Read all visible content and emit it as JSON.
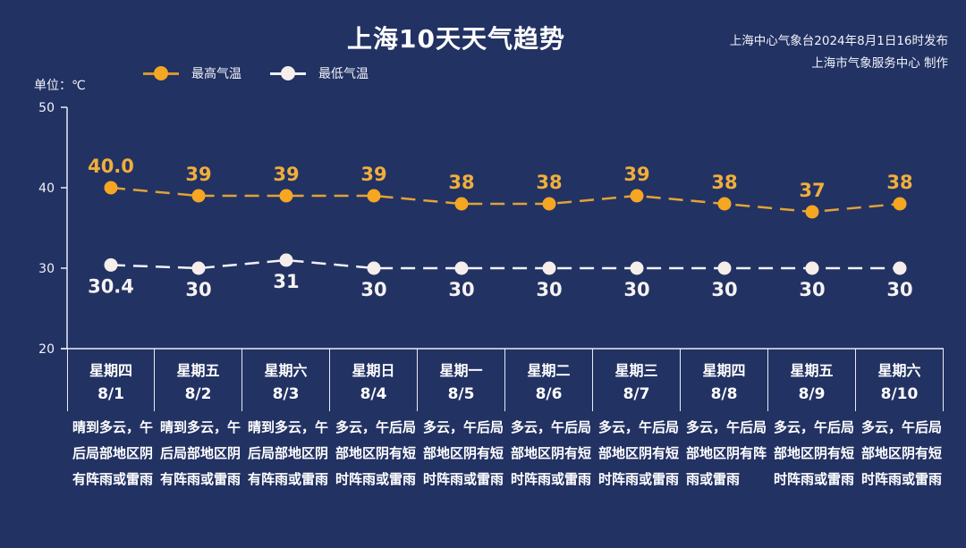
{
  "header": {
    "title": "上海10天天气趋势",
    "source_line1": "上海中心气象台2024年8月1日16时发布",
    "source_line2": "上海市气象服务中心 制作",
    "unit_label": "单位：℃"
  },
  "legend": [
    {
      "label": "最高气温",
      "color": "#F5A623"
    },
    {
      "label": "最低气温",
      "color": "#F5EEEA"
    }
  ],
  "colors": {
    "background": "#223263",
    "high": "#F5A623",
    "high_label": "#F0AE3C",
    "low": "#F5EEEA",
    "axis": "#E8ECF4"
  },
  "days": [
    {
      "weekday": "星期四",
      "date": "8/1",
      "desc": "晴到多云，午后局部地区阴有阵雨或雷雨"
    },
    {
      "weekday": "星期五",
      "date": "8/2",
      "desc": "晴到多云，午后局部地区阴有阵雨或雷雨"
    },
    {
      "weekday": "星期六",
      "date": "8/3",
      "desc": "晴到多云，午后局部地区阴有阵雨或雷雨"
    },
    {
      "weekday": "星期日",
      "date": "8/4",
      "desc": "多云，午后局部地区阴有短时阵雨或雷雨"
    },
    {
      "weekday": "星期一",
      "date": "8/5",
      "desc": "多云，午后局部地区阴有短时阵雨或雷雨"
    },
    {
      "weekday": "星期二",
      "date": "8/6",
      "desc": "多云，午后局部地区阴有短时阵雨或雷雨"
    },
    {
      "weekday": "星期三",
      "date": "8/7",
      "desc": "多云，午后局部地区阴有短时阵雨或雷雨"
    },
    {
      "weekday": "星期四",
      "date": "8/8",
      "desc": "多云，午后局部地区阴有阵雨或雷雨"
    },
    {
      "weekday": "星期五",
      "date": "8/9",
      "desc": "多云，午后局部地区阴有短时阵雨或雷雨"
    },
    {
      "weekday": "星期六",
      "date": "8/10",
      "desc": "多云，午后局部地区阴有短时阵雨或雷雨"
    }
  ],
  "chart_data": {
    "type": "line",
    "title": "上海10天天气趋势",
    "xlabel": "",
    "ylabel": "单位：℃",
    "ylim": [
      20,
      50
    ],
    "yticks": [
      20,
      30,
      40,
      50
    ],
    "grid": false,
    "legend_position": "top-left",
    "categories": [
      "8/1",
      "8/2",
      "8/3",
      "8/4",
      "8/5",
      "8/6",
      "8/7",
      "8/8",
      "8/9",
      "8/10"
    ],
    "series": [
      {
        "name": "最高气温",
        "values": [
          40.0,
          39,
          39,
          39,
          38,
          38,
          39,
          38,
          37,
          38
        ],
        "labels": [
          "40.0",
          "39",
          "39",
          "39",
          "38",
          "38",
          "39",
          "38",
          "37",
          "38"
        ],
        "style": "dashed",
        "label_position": "above"
      },
      {
        "name": "最低气温",
        "values": [
          30.4,
          30,
          31,
          30,
          30,
          30,
          30,
          30,
          30,
          30
        ],
        "labels": [
          "30.4",
          "30",
          "31",
          "30",
          "30",
          "30",
          "30",
          "30",
          "30",
          "30"
        ],
        "style": "dashed",
        "label_position": "below"
      }
    ]
  }
}
